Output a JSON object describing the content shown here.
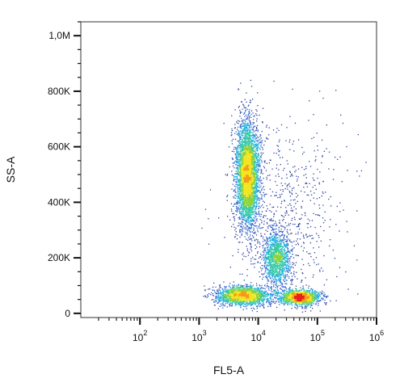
{
  "chart_data": {
    "type": "scatter",
    "style": "flow-cytometry-density-dot-plot",
    "xlabel": "FL5-A",
    "ylabel": "SS-A",
    "x_scale": "log",
    "xlim": [
      10,
      1000000
    ],
    "ylim": [
      -15000,
      1050000
    ],
    "x_tick_values": [
      100,
      1000,
      10000,
      100000,
      1000000
    ],
    "x_tick_labels": [
      {
        "base": "10",
        "exp": "2"
      },
      {
        "base": "10",
        "exp": "3"
      },
      {
        "base": "10",
        "exp": "4"
      },
      {
        "base": "10",
        "exp": "5"
      },
      {
        "base": "10",
        "exp": "6"
      }
    ],
    "y_tick_values": [
      0,
      200000,
      400000,
      600000,
      800000,
      1000000
    ],
    "y_tick_labels": [
      "0",
      "200K",
      "400K",
      "600K",
      "800K",
      "1,0M"
    ],
    "grid": false,
    "legend": "none",
    "density_colors": [
      "#2a3fa0",
      "#3b66c8",
      "#22aee0",
      "#35c9a4",
      "#8ed23a",
      "#f2e51f",
      "#f39b1c",
      "#e8231c"
    ],
    "populations": [
      {
        "x_center": 6500,
        "y_center": 500000,
        "x_log_sd": 0.1,
        "y_sd": 95000,
        "share": 0.42,
        "shape": "tall-ellipse"
      },
      {
        "x_center": 5500,
        "y_center": 65000,
        "x_log_sd": 0.22,
        "y_sd": 17000,
        "share": 0.2,
        "shape": "flat-ellipse"
      },
      {
        "x_center": 50000,
        "y_center": 60000,
        "x_log_sd": 0.17,
        "y_sd": 14000,
        "share": 0.16,
        "shape": "flat-ellipse"
      },
      {
        "x_center": 20000,
        "y_center": 200000,
        "x_log_sd": 0.12,
        "y_sd": 50000,
        "share": 0.14,
        "shape": "diffuse"
      },
      {
        "x_center": 30000,
        "y_center": 350000,
        "x_log_sd": 0.5,
        "y_sd": 180000,
        "share": 0.08,
        "shape": "scattered-background"
      }
    ]
  }
}
